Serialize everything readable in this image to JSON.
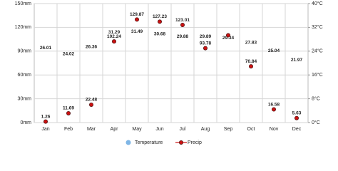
{
  "chart_data": {
    "type": "climate",
    "categories": [
      "Jan",
      "Feb",
      "Mar",
      "Apr",
      "May",
      "Jun",
      "Jul",
      "Aug",
      "Sep",
      "Oct",
      "Nov",
      "Dec"
    ],
    "ylim": [
      0,
      150
    ],
    "yticks": [
      {
        "value": 0,
        "label": "0mm"
      },
      {
        "value": 30,
        "label": "30mm"
      },
      {
        "value": 60,
        "label": "60mm"
      },
      {
        "value": 90,
        "label": "90mm"
      },
      {
        "value": 120,
        "label": "120mm"
      },
      {
        "value": 150,
        "label": "150mm"
      }
    ],
    "y2lim": [
      0,
      40
    ],
    "y2ticks": [
      {
        "value": 0,
        "label": "0°C"
      },
      {
        "value": 8,
        "label": "8°C"
      },
      {
        "value": 16,
        "label": "16°C"
      },
      {
        "value": 24,
        "label": "24°C"
      },
      {
        "value": 32,
        "label": "32°C"
      },
      {
        "value": 40,
        "label": "40°C"
      }
    ],
    "grid": true,
    "series": [
      {
        "name": "Temperature",
        "color": "#7fb6e6",
        "axis": "y2",
        "values": [
          26.01,
          24.02,
          26.36,
          31.29,
          31.49,
          30.68,
          29.88,
          29.89,
          29.34,
          27.83,
          25.04,
          21.97
        ]
      },
      {
        "name": "Precip",
        "color": "#cc1111",
        "axis": "y",
        "values": [
          1.26,
          11.69,
          22.48,
          102.24,
          129.87,
          127.23,
          123.01,
          93.78,
          110,
          70.84,
          16.58,
          5.63
        ],
        "value_labels": [
          "1.26",
          "11.69",
          "22.48",
          "102.24",
          "129.87",
          "127.23",
          "123.01",
          "93.78",
          null,
          "70.84",
          "16.58",
          "5.63"
        ]
      }
    ]
  }
}
